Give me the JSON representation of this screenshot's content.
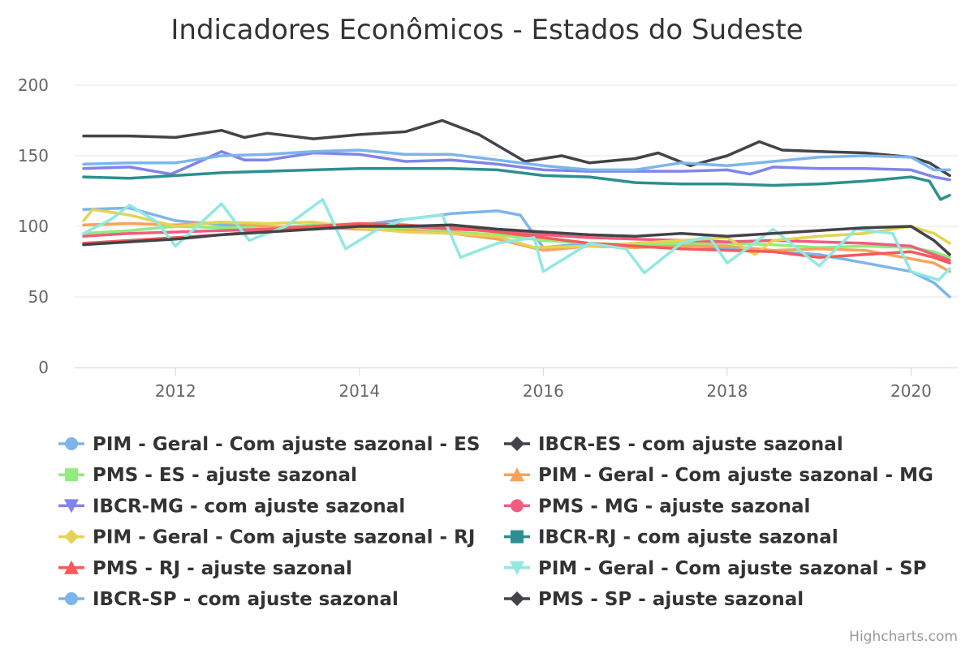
{
  "chart_data": {
    "type": "line",
    "title": "Indicadores Econômicos - Estados do Sudeste",
    "ylim": [
      0,
      200
    ],
    "xlim": [
      2011.0,
      2020.42
    ],
    "yticks": [
      0,
      50,
      100,
      150,
      200
    ],
    "xticks": [
      2012,
      2014,
      2016,
      2018,
      2020
    ],
    "xtick_labels": [
      "2012",
      "2014",
      "2016",
      "2018",
      "2020"
    ],
    "ytick_labels": [
      "0",
      "50",
      "100",
      "150",
      "200"
    ],
    "grid": true,
    "legend_position": "bottom",
    "credits": "Highcharts.com",
    "series": [
      {
        "name": "PIM - Geral - Com ajuste sazonal - ES",
        "color": "#7cb5ec",
        "marker": "circle",
        "points": [
          [
            2011.0,
            112
          ],
          [
            2011.5,
            113
          ],
          [
            2012.0,
            104
          ],
          [
            2012.5,
            101
          ],
          [
            2013.0,
            100
          ],
          [
            2013.5,
            98
          ],
          [
            2014.0,
            101
          ],
          [
            2014.5,
            105
          ],
          [
            2015.0,
            109
          ],
          [
            2015.5,
            111
          ],
          [
            2015.75,
            108
          ],
          [
            2016.0,
            85
          ],
          [
            2016.5,
            88
          ],
          [
            2017.0,
            85
          ],
          [
            2017.5,
            87
          ],
          [
            2018.0,
            84
          ],
          [
            2018.5,
            82
          ],
          [
            2019.0,
            80
          ],
          [
            2019.5,
            74
          ],
          [
            2020.0,
            68
          ],
          [
            2020.25,
            60
          ],
          [
            2020.42,
            50
          ]
        ]
      },
      {
        "name": "IBCR-ES - com ajuste sazonal",
        "color": "#434348",
        "marker": "diamond",
        "points": [
          [
            2011.0,
            164
          ],
          [
            2011.5,
            164
          ],
          [
            2012.0,
            163
          ],
          [
            2012.5,
            168
          ],
          [
            2012.75,
            163
          ],
          [
            2013.0,
            166
          ],
          [
            2013.5,
            162
          ],
          [
            2014.0,
            165
          ],
          [
            2014.5,
            167
          ],
          [
            2014.9,
            175
          ],
          [
            2015.3,
            165
          ],
          [
            2015.8,
            146
          ],
          [
            2016.2,
            150
          ],
          [
            2016.5,
            145
          ],
          [
            2017.0,
            148
          ],
          [
            2017.25,
            152
          ],
          [
            2017.6,
            143
          ],
          [
            2018.0,
            150
          ],
          [
            2018.35,
            160
          ],
          [
            2018.6,
            154
          ],
          [
            2019.0,
            153
          ],
          [
            2019.5,
            152
          ],
          [
            2020.0,
            149
          ],
          [
            2020.2,
            145
          ],
          [
            2020.42,
            136
          ]
        ]
      },
      {
        "name": "PMS - ES - ajuste sazonal",
        "color": "#90ed7d",
        "marker": "square",
        "points": [
          [
            2011.0,
            95
          ],
          [
            2011.5,
            97
          ],
          [
            2012.0,
            100
          ],
          [
            2012.5,
            99
          ],
          [
            2013.0,
            99
          ],
          [
            2013.5,
            101
          ],
          [
            2014.0,
            100
          ],
          [
            2014.5,
            98
          ],
          [
            2015.0,
            96
          ],
          [
            2015.5,
            94
          ],
          [
            2016.0,
            90
          ],
          [
            2016.5,
            88
          ],
          [
            2017.0,
            87
          ],
          [
            2017.5,
            88
          ],
          [
            2018.0,
            88
          ],
          [
            2018.5,
            87
          ],
          [
            2019.0,
            85
          ],
          [
            2019.5,
            86
          ],
          [
            2020.0,
            85
          ],
          [
            2020.25,
            82
          ],
          [
            2020.42,
            78
          ]
        ]
      },
      {
        "name": "PIM - Geral - Com ajuste sazonal - MG",
        "color": "#f7a35c",
        "marker": "triangle",
        "points": [
          [
            2011.0,
            101
          ],
          [
            2011.5,
            102
          ],
          [
            2012.0,
            101
          ],
          [
            2012.5,
            103
          ],
          [
            2013.0,
            100
          ],
          [
            2013.5,
            99
          ],
          [
            2014.0,
            98
          ],
          [
            2014.5,
            97
          ],
          [
            2015.0,
            95
          ],
          [
            2015.5,
            91
          ],
          [
            2016.0,
            83
          ],
          [
            2016.5,
            86
          ],
          [
            2017.0,
            85
          ],
          [
            2017.5,
            86
          ],
          [
            2018.0,
            86
          ],
          [
            2018.5,
            83
          ],
          [
            2019.0,
            84
          ],
          [
            2019.5,
            83
          ],
          [
            2020.0,
            77
          ],
          [
            2020.25,
            74
          ],
          [
            2020.42,
            68
          ]
        ]
      },
      {
        "name": "IBCR-MG - com ajuste sazonal",
        "color": "#8085e9",
        "marker": "triangle-down",
        "points": [
          [
            2011.0,
            141
          ],
          [
            2011.5,
            142
          ],
          [
            2011.95,
            137
          ],
          [
            2012.2,
            144
          ],
          [
            2012.5,
            153
          ],
          [
            2012.75,
            147
          ],
          [
            2013.0,
            147
          ],
          [
            2013.5,
            152
          ],
          [
            2014.0,
            151
          ],
          [
            2014.5,
            146
          ],
          [
            2015.0,
            147
          ],
          [
            2015.5,
            144
          ],
          [
            2016.0,
            140
          ],
          [
            2016.5,
            139
          ],
          [
            2017.0,
            139
          ],
          [
            2017.5,
            139
          ],
          [
            2018.0,
            140
          ],
          [
            2018.25,
            137
          ],
          [
            2018.5,
            142
          ],
          [
            2019.0,
            141
          ],
          [
            2019.5,
            141
          ],
          [
            2020.0,
            140
          ],
          [
            2020.25,
            135
          ],
          [
            2020.42,
            133
          ]
        ]
      },
      {
        "name": "PMS - MG - ajuste sazonal",
        "color": "#f15c80",
        "marker": "circle",
        "points": [
          [
            2011.0,
            93
          ],
          [
            2011.5,
            95
          ],
          [
            2012.0,
            96
          ],
          [
            2012.5,
            97
          ],
          [
            2013.0,
            98
          ],
          [
            2013.5,
            100
          ],
          [
            2014.0,
            100
          ],
          [
            2014.5,
            100
          ],
          [
            2015.0,
            98
          ],
          [
            2015.5,
            97
          ],
          [
            2016.0,
            94
          ],
          [
            2016.5,
            92
          ],
          [
            2017.0,
            91
          ],
          [
            2017.5,
            90
          ],
          [
            2018.0,
            89
          ],
          [
            2018.5,
            90
          ],
          [
            2019.0,
            89
          ],
          [
            2019.5,
            88
          ],
          [
            2020.0,
            86
          ],
          [
            2020.25,
            80
          ],
          [
            2020.42,
            76
          ]
        ]
      },
      {
        "name": "PIM - Geral - Com ajuste sazonal - RJ",
        "color": "#e4d354",
        "marker": "diamond",
        "points": [
          [
            2011.0,
            104
          ],
          [
            2011.1,
            112
          ],
          [
            2011.5,
            108
          ],
          [
            2012.0,
            100
          ],
          [
            2012.5,
            103
          ],
          [
            2013.0,
            102
          ],
          [
            2013.5,
            103
          ],
          [
            2014.0,
            99
          ],
          [
            2014.5,
            96
          ],
          [
            2015.0,
            95
          ],
          [
            2015.5,
            93
          ],
          [
            2015.9,
            85
          ],
          [
            2016.5,
            86
          ],
          [
            2017.0,
            88
          ],
          [
            2017.5,
            90
          ],
          [
            2018.0,
            92
          ],
          [
            2018.3,
            80
          ],
          [
            2018.5,
            90
          ],
          [
            2019.0,
            93
          ],
          [
            2019.5,
            95
          ],
          [
            2020.0,
            100
          ],
          [
            2020.25,
            95
          ],
          [
            2020.42,
            88
          ]
        ]
      },
      {
        "name": "IBCR-RJ - com ajuste sazonal",
        "color": "#2b908f",
        "marker": "square",
        "points": [
          [
            2011.0,
            135
          ],
          [
            2011.5,
            134
          ],
          [
            2012.0,
            136
          ],
          [
            2012.5,
            138
          ],
          [
            2013.0,
            139
          ],
          [
            2013.5,
            140
          ],
          [
            2014.0,
            141
          ],
          [
            2014.5,
            141
          ],
          [
            2015.0,
            141
          ],
          [
            2015.5,
            140
          ],
          [
            2016.0,
            136
          ],
          [
            2016.5,
            135
          ],
          [
            2017.0,
            131
          ],
          [
            2017.5,
            130
          ],
          [
            2018.0,
            130
          ],
          [
            2018.5,
            129
          ],
          [
            2019.0,
            130
          ],
          [
            2019.5,
            132
          ],
          [
            2020.0,
            135
          ],
          [
            2020.2,
            132
          ],
          [
            2020.32,
            119
          ],
          [
            2020.42,
            122
          ]
        ]
      },
      {
        "name": "PMS - RJ - ajuste sazonal",
        "color": "#f45b5b",
        "marker": "triangle",
        "points": [
          [
            2011.0,
            88
          ],
          [
            2011.5,
            90
          ],
          [
            2012.0,
            92
          ],
          [
            2012.5,
            94
          ],
          [
            2013.0,
            97
          ],
          [
            2013.5,
            100
          ],
          [
            2014.0,
            102
          ],
          [
            2014.5,
            101
          ],
          [
            2015.0,
            99
          ],
          [
            2015.5,
            96
          ],
          [
            2016.0,
            92
          ],
          [
            2016.5,
            88
          ],
          [
            2017.0,
            86
          ],
          [
            2017.5,
            84
          ],
          [
            2018.0,
            83
          ],
          [
            2018.5,
            82
          ],
          [
            2019.0,
            78
          ],
          [
            2019.5,
            80
          ],
          [
            2020.0,
            82
          ],
          [
            2020.25,
            78
          ],
          [
            2020.42,
            74
          ]
        ]
      },
      {
        "name": "PIM - Geral - Com ajuste sazonal - SP",
        "color": "#91e8e1",
        "marker": "triangle-down",
        "points": [
          [
            2011.0,
            95
          ],
          [
            2011.3,
            105
          ],
          [
            2011.5,
            115
          ],
          [
            2011.8,
            103
          ],
          [
            2012.0,
            86
          ],
          [
            2012.5,
            116
          ],
          [
            2012.8,
            90
          ],
          [
            2013.2,
            100
          ],
          [
            2013.6,
            119
          ],
          [
            2013.85,
            84
          ],
          [
            2014.2,
            98
          ],
          [
            2014.5,
            105
          ],
          [
            2014.9,
            108
          ],
          [
            2015.1,
            78
          ],
          [
            2015.5,
            88
          ],
          [
            2015.9,
            92
          ],
          [
            2016.0,
            68
          ],
          [
            2016.5,
            88
          ],
          [
            2016.9,
            84
          ],
          [
            2017.1,
            67
          ],
          [
            2017.5,
            88
          ],
          [
            2017.8,
            93
          ],
          [
            2018.0,
            74
          ],
          [
            2018.5,
            98
          ],
          [
            2019.0,
            72
          ],
          [
            2019.4,
            98
          ],
          [
            2019.8,
            95
          ],
          [
            2020.0,
            68
          ],
          [
            2020.3,
            62
          ],
          [
            2020.42,
            70
          ]
        ]
      },
      {
        "name": "IBCR-SP - com ajuste sazonal",
        "color": "#7cb5ec",
        "marker": "circle",
        "points": [
          [
            2011.0,
            144
          ],
          [
            2011.5,
            145
          ],
          [
            2012.0,
            145
          ],
          [
            2012.5,
            150
          ],
          [
            2013.0,
            151
          ],
          [
            2013.5,
            153
          ],
          [
            2014.0,
            154
          ],
          [
            2014.5,
            151
          ],
          [
            2015.0,
            151
          ],
          [
            2015.5,
            147
          ],
          [
            2016.0,
            143
          ],
          [
            2016.5,
            140
          ],
          [
            2017.0,
            140
          ],
          [
            2017.5,
            145
          ],
          [
            2018.0,
            143
          ],
          [
            2018.5,
            146
          ],
          [
            2019.0,
            149
          ],
          [
            2019.5,
            150
          ],
          [
            2020.0,
            149
          ],
          [
            2020.25,
            140
          ],
          [
            2020.42,
            140
          ]
        ]
      },
      {
        "name": "PMS - SP - ajuste sazonal",
        "color": "#434348",
        "marker": "diamond",
        "points": [
          [
            2011.0,
            87
          ],
          [
            2011.5,
            89
          ],
          [
            2012.0,
            91
          ],
          [
            2012.5,
            94
          ],
          [
            2013.0,
            96
          ],
          [
            2013.5,
            98
          ],
          [
            2014.0,
            100
          ],
          [
            2014.5,
            100
          ],
          [
            2015.0,
            101
          ],
          [
            2015.5,
            98
          ],
          [
            2016.0,
            96
          ],
          [
            2016.5,
            94
          ],
          [
            2017.0,
            93
          ],
          [
            2017.5,
            95
          ],
          [
            2018.0,
            93
          ],
          [
            2018.5,
            95
          ],
          [
            2019.0,
            97
          ],
          [
            2019.5,
            99
          ],
          [
            2020.0,
            100
          ],
          [
            2020.25,
            90
          ],
          [
            2020.42,
            80
          ]
        ]
      }
    ]
  }
}
